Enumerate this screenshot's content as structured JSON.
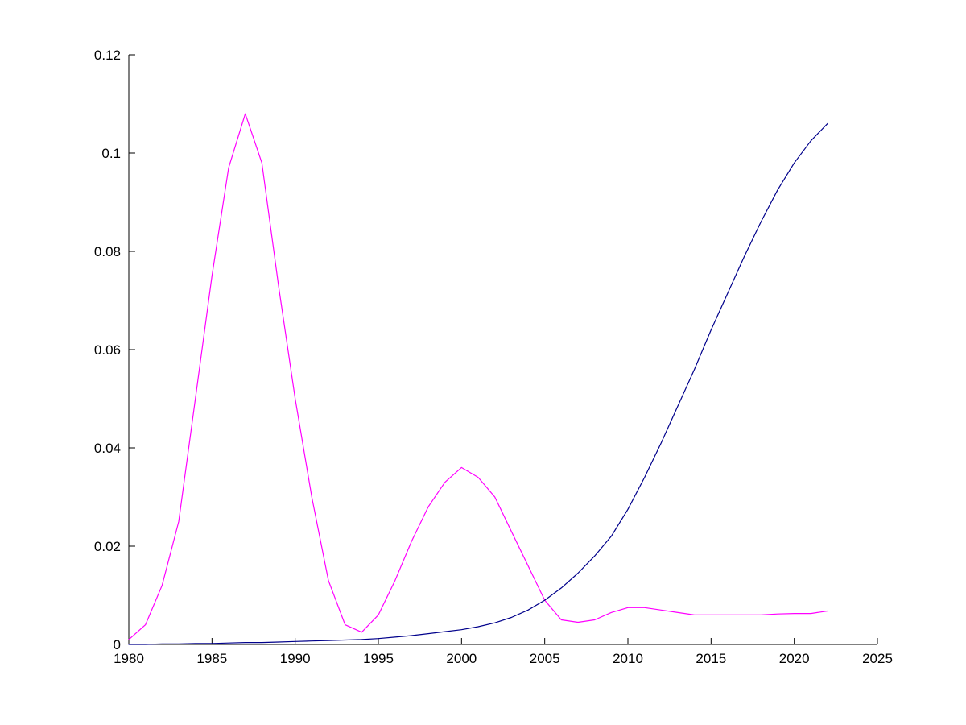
{
  "figure": {
    "background": "#ffffff"
  },
  "chart_data": {
    "type": "line",
    "title": "",
    "xlabel": "",
    "ylabel": "",
    "grid": false,
    "legend": null,
    "xlim": [
      1980,
      2025
    ],
    "ylim": [
      0,
      0.12
    ],
    "xticks": [
      1980,
      1985,
      1990,
      1995,
      2000,
      2005,
      2010,
      2015,
      2020,
      2025
    ],
    "xtick_labels": [
      "1980",
      "1985",
      "1990",
      "1995",
      "2000",
      "2005",
      "2010",
      "2015",
      "2020",
      "2025"
    ],
    "yticks": [
      0,
      0.02,
      0.04,
      0.06,
      0.08,
      0.1,
      0.12
    ],
    "ytick_labels": [
      "0",
      "0.02",
      "0.04",
      "0.06",
      "0.08",
      "0.1",
      "0.12"
    ],
    "axis_color": "#000000",
    "x": [
      1980,
      1981,
      1982,
      1983,
      1984,
      1985,
      1986,
      1987,
      1988,
      1989,
      1990,
      1991,
      1992,
      1993,
      1994,
      1995,
      1996,
      1997,
      1998,
      1999,
      2000,
      2001,
      2002,
      2003,
      2004,
      2005,
      2006,
      2007,
      2008,
      2009,
      2010,
      2011,
      2012,
      2013,
      2014,
      2015,
      2016,
      2017,
      2018,
      2019,
      2020,
      2021,
      2022
    ],
    "series": [
      {
        "name": "magenta-series",
        "color": "#ff00ff",
        "values": [
          0.001,
          0.004,
          0.012,
          0.025,
          0.05,
          0.075,
          0.097,
          0.108,
          0.098,
          0.073,
          0.05,
          0.03,
          0.013,
          0.004,
          0.0025,
          0.006,
          0.013,
          0.021,
          0.028,
          0.033,
          0.036,
          0.034,
          0.03,
          0.023,
          0.016,
          0.009,
          0.005,
          0.0045,
          0.005,
          0.0065,
          0.0075,
          0.0075,
          0.007,
          0.0065,
          0.006,
          0.006,
          0.006,
          0.006,
          0.006,
          0.0062,
          0.0063,
          0.0063,
          0.0068
        ]
      },
      {
        "name": "blue-series",
        "color": "#00008b",
        "values": [
          0.0,
          0.0,
          0.0001,
          0.0001,
          0.0002,
          0.0002,
          0.0003,
          0.0004,
          0.0004,
          0.0005,
          0.0006,
          0.0007,
          0.0008,
          0.0009,
          0.001,
          0.0012,
          0.0015,
          0.0018,
          0.0022,
          0.0026,
          0.003,
          0.0036,
          0.0044,
          0.0055,
          0.007,
          0.009,
          0.0115,
          0.0145,
          0.018,
          0.022,
          0.0275,
          0.034,
          0.041,
          0.0485,
          0.056,
          0.064,
          0.0715,
          0.079,
          0.086,
          0.0925,
          0.098,
          0.1025,
          0.106
        ]
      }
    ]
  }
}
